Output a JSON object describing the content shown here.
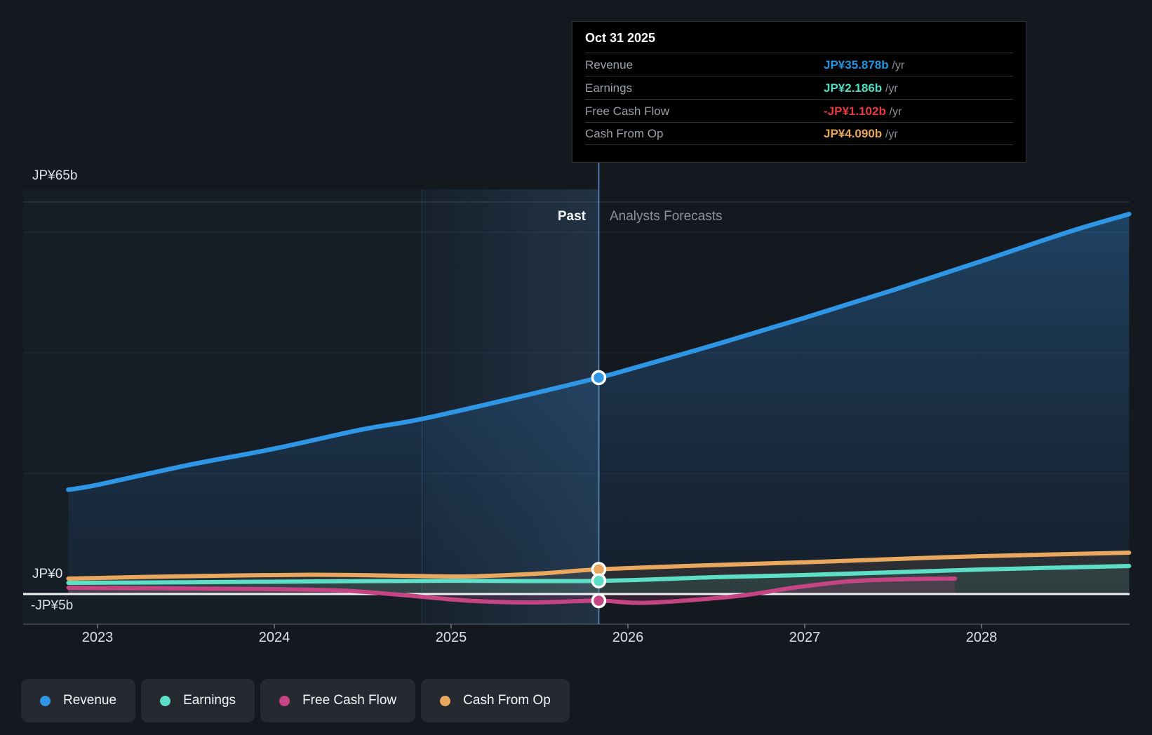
{
  "sections": {
    "past": "Past",
    "forecast": "Analysts Forecasts"
  },
  "axis": {
    "y_labels": [
      "JP¥65b",
      "JP¥0",
      "-JP¥5b"
    ],
    "x_labels": [
      "2023",
      "2024",
      "2025",
      "2026",
      "2027",
      "2028"
    ]
  },
  "tooltip": {
    "date": "Oct 31 2025",
    "rows": [
      {
        "label": "Revenue",
        "value": "JP¥35.878b",
        "suffix": "/yr",
        "color": "#2394df"
      },
      {
        "label": "Earnings",
        "value": "JP¥2.186b",
        "suffix": "/yr",
        "color": "#4fdcc3"
      },
      {
        "label": "Free Cash Flow",
        "value": "-JP¥1.102b",
        "suffix": "/yr",
        "color": "#e63a40"
      },
      {
        "label": "Cash From Op",
        "value": "JP¥4.090b",
        "suffix": "/yr",
        "color": "#e9a75e"
      }
    ]
  },
  "legend": [
    {
      "label": "Revenue",
      "color": "#2e96e5"
    },
    {
      "label": "Earnings",
      "color": "#5cdfc6"
    },
    {
      "label": "Free Cash Flow",
      "color": "#c54584"
    },
    {
      "label": "Cash From Op",
      "color": "#e9a85e"
    }
  ],
  "chart_data": {
    "type": "line",
    "unit": "JP¥ billions per year",
    "x_range": [
      2022.835,
      2028.835
    ],
    "ylim": [
      -5,
      65
    ],
    "gridline_values": [
      65,
      60,
      40,
      20,
      0,
      -5
    ],
    "past_forecast_split_year": 2025.835,
    "highlight_band_years": [
      2024.835,
      2025.835
    ],
    "series": [
      {
        "name": "Revenue",
        "color": "#2e96e5",
        "points": [
          [
            2022.835,
            17.3
          ],
          [
            2023.0,
            18.1
          ],
          [
            2023.5,
            21.3
          ],
          [
            2024.0,
            24.1
          ],
          [
            2024.5,
            27.3
          ],
          [
            2024.83,
            29.0
          ],
          [
            2025.4,
            32.8
          ],
          [
            2025.835,
            35.878
          ],
          [
            2026.0,
            37.2
          ],
          [
            2026.5,
            41.4
          ],
          [
            2027.0,
            45.8
          ],
          [
            2027.5,
            50.4
          ],
          [
            2028.0,
            55.2
          ],
          [
            2028.5,
            60.1
          ],
          [
            2028.835,
            63.0
          ]
        ]
      },
      {
        "name": "Cash From Op",
        "color": "#e9a85e",
        "points": [
          [
            2022.835,
            2.56
          ],
          [
            2023.5,
            2.95
          ],
          [
            2024.2,
            3.2
          ],
          [
            2024.8,
            3.0
          ],
          [
            2025.1,
            2.92
          ],
          [
            2025.5,
            3.4
          ],
          [
            2025.835,
            4.09
          ],
          [
            2026.4,
            4.72
          ],
          [
            2027.0,
            5.27
          ],
          [
            2027.6,
            5.9
          ],
          [
            2028.0,
            6.28
          ],
          [
            2028.835,
            6.86
          ]
        ]
      },
      {
        "name": "Earnings",
        "color": "#5cdfc6",
        "points": [
          [
            2022.835,
            1.86
          ],
          [
            2023.5,
            1.95
          ],
          [
            2024.3,
            2.1
          ],
          [
            2025.0,
            2.2
          ],
          [
            2025.835,
            2.186
          ],
          [
            2026.5,
            2.8
          ],
          [
            2027.0,
            3.15
          ],
          [
            2027.5,
            3.6
          ],
          [
            2028.0,
            4.07
          ],
          [
            2028.835,
            4.65
          ]
        ]
      },
      {
        "name": "Free Cash Flow",
        "color": "#c54584",
        "points": [
          [
            2022.835,
            1.05
          ],
          [
            2023.3,
            0.95
          ],
          [
            2024.0,
            0.81
          ],
          [
            2024.4,
            0.55
          ],
          [
            2024.7,
            -0.1
          ],
          [
            2025.1,
            -1.1
          ],
          [
            2025.45,
            -1.4
          ],
          [
            2025.835,
            -1.102
          ],
          [
            2026.1,
            -1.45
          ],
          [
            2026.6,
            -0.4
          ],
          [
            2026.95,
            1.1
          ],
          [
            2027.25,
            2.1
          ],
          [
            2027.55,
            2.45
          ],
          [
            2027.85,
            2.56
          ]
        ]
      }
    ],
    "today_marker": {
      "date": "Oct 31 2025",
      "year": 2025.835,
      "values": {
        "Revenue": 35.878,
        "Cash From Op": 4.09,
        "Earnings": 2.186,
        "Free Cash Flow": -1.102
      }
    }
  }
}
